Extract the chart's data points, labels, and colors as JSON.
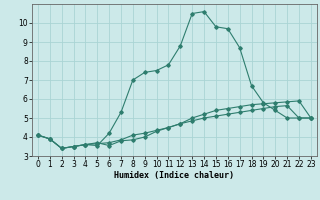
{
  "xlabel": "Humidex (Indice chaleur)",
  "ylabel": "",
  "background_color": "#cce9e9",
  "grid_color": "#aad4d4",
  "line_color": "#2e7d6e",
  "xlim": [
    -0.5,
    23.5
  ],
  "ylim": [
    3,
    11
  ],
  "yticks": [
    3,
    4,
    5,
    6,
    7,
    8,
    9,
    10
  ],
  "xticks": [
    0,
    1,
    2,
    3,
    4,
    5,
    6,
    7,
    8,
    9,
    10,
    11,
    12,
    13,
    14,
    15,
    16,
    17,
    18,
    19,
    20,
    21,
    22,
    23
  ],
  "series1_x": [
    0,
    1,
    2,
    3,
    4,
    5,
    6,
    7,
    8,
    9,
    10,
    11,
    12,
    13,
    14,
    15,
    16,
    17,
    18,
    19,
    20,
    21,
    22,
    23
  ],
  "series1_y": [
    4.1,
    3.9,
    3.4,
    3.5,
    3.6,
    3.7,
    3.55,
    3.8,
    3.85,
    4.0,
    4.3,
    4.5,
    4.7,
    5.0,
    5.2,
    5.4,
    5.5,
    5.6,
    5.7,
    5.75,
    5.8,
    5.85,
    5.9,
    5.0
  ],
  "series2_x": [
    0,
    1,
    2,
    3,
    4,
    5,
    6,
    7,
    8,
    9,
    10,
    11,
    12,
    13,
    14,
    15,
    16,
    17,
    18,
    19,
    20,
    21,
    22,
    23
  ],
  "series2_y": [
    4.1,
    3.9,
    3.4,
    3.5,
    3.6,
    3.55,
    4.2,
    5.3,
    7.0,
    7.4,
    7.5,
    7.8,
    8.8,
    10.5,
    10.6,
    9.8,
    9.7,
    8.7,
    6.7,
    5.8,
    5.4,
    5.0,
    5.0,
    5.0
  ],
  "series3_x": [
    0,
    1,
    2,
    3,
    4,
    5,
    6,
    7,
    8,
    9,
    10,
    11,
    12,
    13,
    14,
    15,
    16,
    17,
    18,
    19,
    20,
    21,
    22,
    23
  ],
  "series3_y": [
    4.1,
    3.9,
    3.4,
    3.5,
    3.6,
    3.65,
    3.7,
    3.85,
    4.1,
    4.2,
    4.35,
    4.5,
    4.7,
    4.85,
    5.0,
    5.1,
    5.2,
    5.3,
    5.4,
    5.5,
    5.6,
    5.65,
    5.0,
    5.0
  ],
  "xlabel_fontsize": 6.0,
  "tick_fontsize": 5.5
}
